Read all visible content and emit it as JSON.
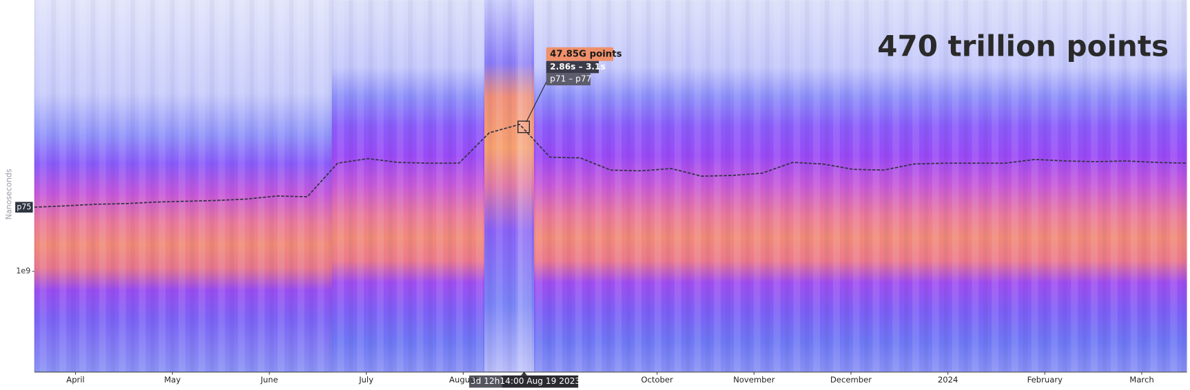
{
  "chart_data": {
    "type": "heatmap",
    "title": "470 trillion points",
    "y_label": "Nanoseconds",
    "x_labels": [
      "April",
      "May",
      "June",
      "July",
      "August",
      null,
      "October",
      "November",
      "December",
      "2024",
      "February",
      "March"
    ],
    "ylim": [
      470000000,
      7700000000
    ],
    "yticks": [
      {
        "value": 1000000000,
        "label": "1e9"
      }
    ],
    "log_scale": true,
    "series": [
      {
        "name": "p75",
        "color": "#333344",
        "values": [
          1620000000,
          1636000000,
          1656000000,
          1665000000,
          1684000000,
          1694000000,
          1704000000,
          1723000000,
          1763000000,
          1753000000,
          2256000000,
          2335000000,
          2269000000,
          2256000000,
          2256000000,
          2836000000,
          3021000000,
          2361000000,
          2348000000,
          2142000000,
          2130000000,
          2167000000,
          2046000000,
          2058000000,
          2094000000,
          2269000000,
          2243000000,
          2154000000,
          2142000000,
          2243000000,
          2256000000,
          2256000000,
          2256000000,
          2321000000,
          2295000000,
          2282000000,
          2295000000,
          2269000000,
          2256000000
        ]
      }
    ],
    "tooltip": {
      "count": "47.85G points",
      "range": "2.86s – 3.1s",
      "percentiles": "p71 – p77"
    },
    "hover_x": {
      "duration": "3d 12h",
      "time": "14:00 Aug 19 2023"
    }
  }
}
